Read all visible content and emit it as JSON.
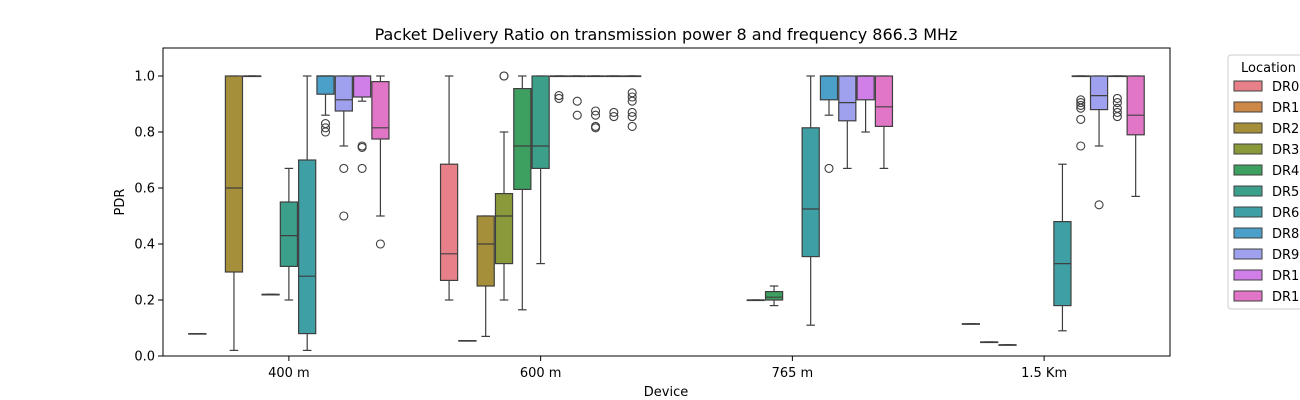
{
  "chart_data": {
    "type": "box",
    "title": "Packet Delivery Ratio on transmission power 8 and frequency 866.3 MHz",
    "xlabel": "Device",
    "ylabel": "PDR",
    "ylim": [
      0,
      1.1
    ],
    "yticks": [
      "0.0",
      "0.2",
      "0.4",
      "0.6",
      "0.8",
      "1.0"
    ],
    "categories": [
      "400 m",
      "600 m",
      "765 m",
      "1.5 Km"
    ],
    "legend": {
      "title": "Location",
      "placement": "outside-right",
      "entries": [
        {
          "name": "DR0",
          "color": "#e8808a"
        },
        {
          "name": "DR1",
          "color": "#cd8848"
        },
        {
          "name": "DR2",
          "color": "#a68f3a"
        },
        {
          "name": "DR3",
          "color": "#8a9a3b"
        },
        {
          "name": "DR4",
          "color": "#3da060"
        },
        {
          "name": "DR5",
          "color": "#3c9f8a"
        },
        {
          "name": "DR6",
          "color": "#3e9fa5"
        },
        {
          "name": "DR8",
          "color": "#4aa0c8"
        },
        {
          "name": "DR9",
          "color": "#9fa1ee"
        },
        {
          "name": "DR1",
          "color": "#d07ee8"
        },
        {
          "name": "DR1",
          "color": "#e276c6"
        }
      ]
    },
    "boxes": [
      {
        "category": "400 m",
        "series": 0,
        "whislo": 0.08,
        "q1": 0.08,
        "med": 0.08,
        "q3": 0.08,
        "whishi": 0.08,
        "fliers": []
      },
      {
        "category": "400 m",
        "series": 2,
        "whislo": 0.02,
        "q1": 0.3,
        "med": 0.6,
        "q3": 1.0,
        "whishi": 1.0,
        "fliers": []
      },
      {
        "category": "400 m",
        "series": 3,
        "whislo": 1.0,
        "q1": 1.0,
        "med": 1.0,
        "q3": 1.0,
        "whishi": 1.0,
        "fliers": []
      },
      {
        "category": "400 m",
        "series": 4,
        "whislo": 0.22,
        "q1": 0.22,
        "med": 0.22,
        "q3": 0.22,
        "whishi": 0.22,
        "fliers": []
      },
      {
        "category": "400 m",
        "series": 5,
        "whislo": 0.2,
        "q1": 0.32,
        "med": 0.43,
        "q3": 0.55,
        "whishi": 0.67,
        "fliers": []
      },
      {
        "category": "400 m",
        "series": 6,
        "whislo": 0.02,
        "q1": 0.08,
        "med": 0.285,
        "q3": 0.7,
        "whishi": 1.0,
        "fliers": []
      },
      {
        "category": "400 m",
        "series": 7,
        "whislo": 0.86,
        "q1": 0.935,
        "med": 1.0,
        "q3": 1.0,
        "whishi": 1.0,
        "fliers": [
          0.8,
          0.815,
          0.83
        ]
      },
      {
        "category": "400 m",
        "series": 8,
        "whislo": 0.75,
        "q1": 0.875,
        "med": 0.915,
        "q3": 1.0,
        "whishi": 1.0,
        "fliers": [
          0.67,
          0.5
        ]
      },
      {
        "category": "400 m",
        "series": 9,
        "whislo": 0.91,
        "q1": 0.925,
        "med": 1.0,
        "q3": 1.0,
        "whishi": 1.0,
        "fliers": [
          0.75,
          0.745,
          0.67
        ]
      },
      {
        "category": "400 m",
        "series": 10,
        "whislo": 0.5,
        "q1": 0.775,
        "med": 0.815,
        "q3": 0.98,
        "whishi": 1.0,
        "fliers": [
          0.4
        ]
      },
      {
        "category": "600 m",
        "series": 0,
        "whislo": 0.2,
        "q1": 0.27,
        "med": 0.365,
        "q3": 0.685,
        "whishi": 1.0,
        "fliers": []
      },
      {
        "category": "600 m",
        "series": 1,
        "whislo": 0.055,
        "q1": 0.055,
        "med": 0.055,
        "q3": 0.055,
        "whishi": 0.055,
        "fliers": []
      },
      {
        "category": "600 m",
        "series": 2,
        "whislo": 0.07,
        "q1": 0.25,
        "med": 0.4,
        "q3": 0.5,
        "whishi": 0.5,
        "fliers": []
      },
      {
        "category": "600 m",
        "series": 3,
        "whislo": 0.2,
        "q1": 0.33,
        "med": 0.5,
        "q3": 0.58,
        "whishi": 0.8,
        "fliers": [
          1.0,
          1.0
        ]
      },
      {
        "category": "600 m",
        "series": 4,
        "whislo": 0.165,
        "q1": 0.595,
        "med": 0.75,
        "q3": 0.955,
        "whishi": 1.0,
        "fliers": []
      },
      {
        "category": "600 m",
        "series": 5,
        "whislo": 0.33,
        "q1": 0.67,
        "med": 0.75,
        "q3": 1.0,
        "whishi": 1.0,
        "fliers": []
      },
      {
        "category": "600 m",
        "series": 6,
        "whislo": 1.0,
        "q1": 1.0,
        "med": 1.0,
        "q3": 1.0,
        "whishi": 1.0,
        "fliers": [
          0.93,
          0.92
        ]
      },
      {
        "category": "600 m",
        "series": 7,
        "whislo": 1.0,
        "q1": 1.0,
        "med": 1.0,
        "q3": 1.0,
        "whishi": 1.0,
        "fliers": [
          0.91,
          0.86
        ]
      },
      {
        "category": "600 m",
        "series": 8,
        "whislo": 1.0,
        "q1": 1.0,
        "med": 1.0,
        "q3": 1.0,
        "whishi": 1.0,
        "fliers": [
          0.875,
          0.86,
          0.82,
          0.815
        ]
      },
      {
        "category": "600 m",
        "series": 9,
        "whislo": 1.0,
        "q1": 1.0,
        "med": 1.0,
        "q3": 1.0,
        "whishi": 1.0,
        "fliers": [
          0.87,
          0.855
        ]
      },
      {
        "category": "600 m",
        "series": 10,
        "whislo": 1.0,
        "q1": 1.0,
        "med": 1.0,
        "q3": 1.0,
        "whishi": 1.0,
        "fliers": [
          0.94,
          0.925,
          0.91,
          0.87,
          0.855,
          0.82
        ]
      },
      {
        "category": "765 m",
        "series": 3,
        "whislo": 0.2,
        "q1": 0.2,
        "med": 0.2,
        "q3": 0.2,
        "whishi": 0.2,
        "fliers": []
      },
      {
        "category": "765 m",
        "series": 4,
        "whislo": 0.18,
        "q1": 0.2,
        "med": 0.21,
        "q3": 0.23,
        "whishi": 0.25,
        "fliers": []
      },
      {
        "category": "765 m",
        "series": 6,
        "whislo": 0.11,
        "q1": 0.355,
        "med": 0.525,
        "q3": 0.815,
        "whishi": 1.0,
        "fliers": []
      },
      {
        "category": "765 m",
        "series": 7,
        "whislo": 0.86,
        "q1": 0.915,
        "med": 1.0,
        "q3": 1.0,
        "whishi": 1.0,
        "fliers": [
          0.67
        ]
      },
      {
        "category": "765 m",
        "series": 8,
        "whislo": 0.67,
        "q1": 0.84,
        "med": 0.905,
        "q3": 1.0,
        "whishi": 1.0,
        "fliers": []
      },
      {
        "category": "765 m",
        "series": 9,
        "whislo": 0.8,
        "q1": 0.915,
        "med": 1.0,
        "q3": 1.0,
        "whishi": 1.0,
        "fliers": []
      },
      {
        "category": "765 m",
        "series": 10,
        "whislo": 0.67,
        "q1": 0.82,
        "med": 0.89,
        "q3": 1.0,
        "whishi": 1.0,
        "fliers": []
      },
      {
        "category": "1.5 Km",
        "series": 1,
        "whislo": 0.115,
        "q1": 0.115,
        "med": 0.115,
        "q3": 0.115,
        "whishi": 0.115,
        "fliers": []
      },
      {
        "category": "1.5 Km",
        "series": 2,
        "whislo": 0.05,
        "q1": 0.05,
        "med": 0.05,
        "q3": 0.05,
        "whishi": 0.05,
        "fliers": []
      },
      {
        "category": "1.5 Km",
        "series": 3,
        "whislo": 0.04,
        "q1": 0.04,
        "med": 0.04,
        "q3": 0.04,
        "whishi": 0.04,
        "fliers": []
      },
      {
        "category": "1.5 Km",
        "series": 6,
        "whislo": 0.09,
        "q1": 0.18,
        "med": 0.33,
        "q3": 0.48,
        "whishi": 0.685,
        "fliers": []
      },
      {
        "category": "1.5 Km",
        "series": 7,
        "whislo": 1.0,
        "q1": 1.0,
        "med": 1.0,
        "q3": 1.0,
        "whishi": 1.0,
        "fliers": [
          0.915,
          0.905,
          0.895,
          0.885,
          0.845,
          0.75
        ]
      },
      {
        "category": "1.5 Km",
        "series": 8,
        "whislo": 0.75,
        "q1": 0.88,
        "med": 0.93,
        "q3": 1.0,
        "whishi": 1.0,
        "fliers": [
          0.54
        ]
      },
      {
        "category": "1.5 Km",
        "series": 9,
        "whislo": 1.0,
        "q1": 1.0,
        "med": 1.0,
        "q3": 1.0,
        "whishi": 1.0,
        "fliers": [
          0.92,
          0.905,
          0.885,
          0.87,
          0.855
        ]
      },
      {
        "category": "1.5 Km",
        "series": 10,
        "whislo": 0.57,
        "q1": 0.79,
        "med": 0.86,
        "q3": 1.0,
        "whishi": 1.0,
        "fliers": []
      }
    ]
  }
}
